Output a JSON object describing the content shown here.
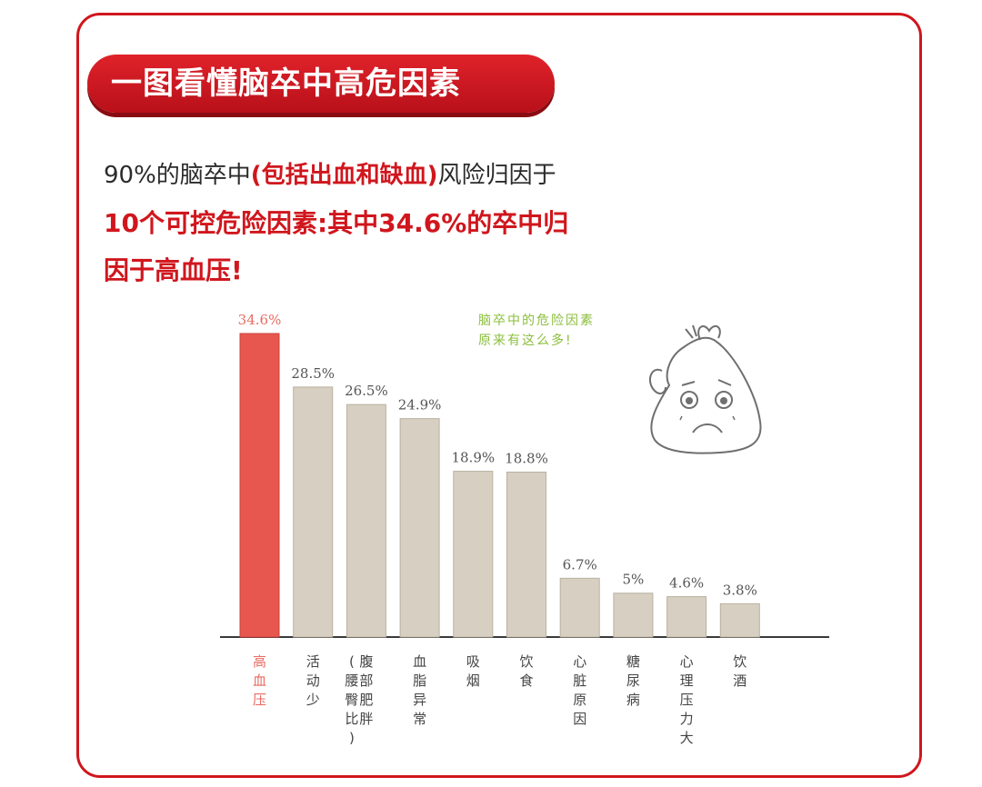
{
  "banner": {
    "title": "一图看懂脑卒中高危因素"
  },
  "intro": {
    "line1_a": "90%的脑卒中",
    "line1_b": "(包括出血和缺血)",
    "line1_c": "风险归因于",
    "line2": "10个可控危险因素:其中34.6%的卒中归",
    "line3": "因于高血压!"
  },
  "speech": {
    "line1": "脑卒中的危险因素",
    "line2": "原来有这么多!"
  },
  "colors": {
    "accent": "#d0161d",
    "highlight_bar": "#e8574f",
    "bar": "#d7d0c2",
    "speech": "#8bbf3c"
  },
  "chart_data": {
    "type": "bar",
    "categories": [
      "高血压",
      "活动少",
      "腹部肥胖(腰臀比)",
      "血脂异常",
      "吸烟",
      "饮食",
      "心脏原因",
      "糖尿病",
      "心理压力大",
      "饮酒"
    ],
    "category_labels_vertical": [
      [
        "高",
        "血",
        "压"
      ],
      [
        "活",
        "动",
        "少"
      ],
      [
        "腹",
        "部",
        "肥",
        "胖"
      ],
      [
        "血",
        "脂",
        "异",
        "常"
      ],
      [
        "吸",
        "烟"
      ],
      [
        "饮",
        "食"
      ],
      [
        "心",
        "脏",
        "原",
        "因"
      ],
      [
        "糖",
        "尿",
        "病"
      ],
      [
        "心",
        "理",
        "压",
        "力",
        "大"
      ],
      [
        "饮",
        "酒"
      ]
    ],
    "paren_label": [
      "(",
      "腰",
      "臀",
      "比",
      ")"
    ],
    "values": [
      34.6,
      28.5,
      26.5,
      24.9,
      18.9,
      18.8,
      6.7,
      5,
      4.6,
      3.8
    ],
    "value_labels": [
      "34.6%",
      "28.5%",
      "26.5%",
      "24.9%",
      "18.9%",
      "18.8%",
      "6.7%",
      "5%",
      "4.6%",
      "3.8%"
    ],
    "highlight_index": 0,
    "ylim": [
      0,
      34.6
    ],
    "grid": false,
    "xlabel": "",
    "ylabel": ""
  }
}
